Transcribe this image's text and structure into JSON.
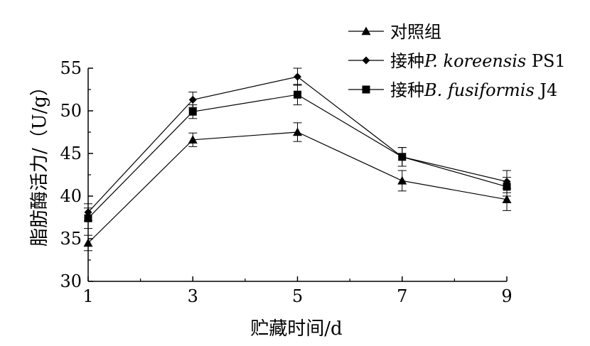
{
  "chart_data": {
    "type": "line",
    "title": "",
    "xlabel": "贮藏时间/d",
    "ylabel": "脂肪酶活力/（U/g）",
    "x": [
      1,
      3,
      5,
      7,
      9
    ],
    "xlim": [
      1,
      9
    ],
    "ylim": [
      30,
      55
    ],
    "xticks": [
      "1",
      "3",
      "5",
      "7",
      "9"
    ],
    "yticks": [
      "30",
      "35",
      "40",
      "45",
      "50",
      "55"
    ],
    "grid": false,
    "legend_position": "top-right",
    "series": [
      {
        "name": "对照组",
        "legend_prefix": "对照组",
        "legend_italic": "",
        "legend_suffix": "",
        "marker": "triangle",
        "values": [
          34.5,
          46.6,
          47.5,
          41.8,
          39.6
        ],
        "errors": [
          0.9,
          0.8,
          1.1,
          1.2,
          1.3
        ]
      },
      {
        "name": "接种P. koreensis PS1",
        "legend_prefix": "接种",
        "legend_italic": "P. koreensis",
        "legend_suffix": " PS1",
        "marker": "diamond",
        "values": [
          38.1,
          51.3,
          54.0,
          44.6,
          41.7
        ],
        "errors": [
          1.0,
          0.9,
          1.0,
          1.1,
          1.3
        ]
      },
      {
        "name": "接种B. fusiformis J4",
        "legend_prefix": "接种",
        "legend_italic": "B. fusiformis",
        "legend_suffix": " J4",
        "marker": "square",
        "values": [
          37.4,
          49.9,
          51.9,
          44.6,
          41.1
        ],
        "errors": [
          1.2,
          0.8,
          1.2,
          1.1,
          1.1
        ]
      }
    ]
  }
}
